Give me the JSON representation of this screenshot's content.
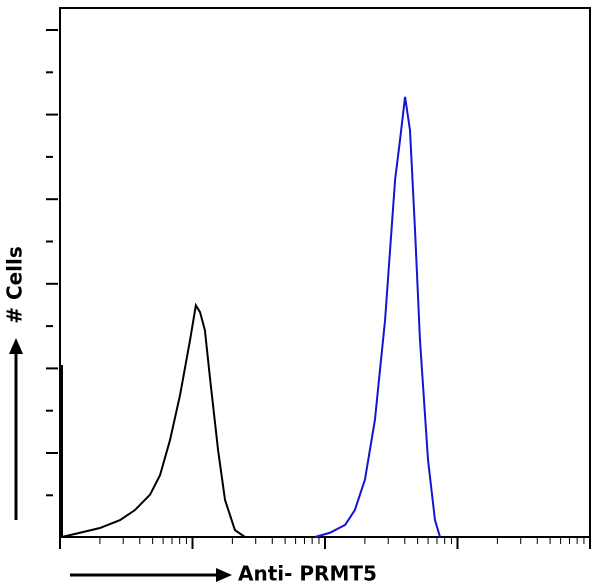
{
  "chart_data": {
    "type": "line",
    "ylabel": "# Cells",
    "xlabel": "Anti- PRMT5",
    "xscale": "log",
    "xlim": [
      1,
      10000
    ],
    "ylim": [
      0,
      100
    ],
    "series": [
      {
        "color": "#000000",
        "x": [
          1.035,
          1.416,
          2.0,
          2.84,
          3.68,
          4.78,
          5.69,
          6.76,
          8.05,
          9.58,
          10.6,
          11.4,
          12.4,
          13.6,
          15.6,
          17.6,
          20.9,
          24.9
        ],
        "values": [
          0,
          0.8,
          1.7,
          3.2,
          5.1,
          8.0,
          11.7,
          18.3,
          26.8,
          37.2,
          43.8,
          42.5,
          39.1,
          29.7,
          16.4,
          7.0,
          1.3,
          0
        ]
      },
      {
        "color": "#1414d2",
        "x": [
          84.1,
          109,
          142,
          168,
          200,
          238,
          284,
          338,
          368,
          402,
          438,
          478,
          521,
          599,
          676,
          738
        ],
        "values": [
          0,
          0.8,
          2.3,
          5.1,
          10.8,
          22.1,
          41.0,
          67.5,
          75.0,
          83.2,
          76.9,
          58.0,
          37.2,
          14.6,
          3.2,
          0
        ]
      }
    ]
  }
}
